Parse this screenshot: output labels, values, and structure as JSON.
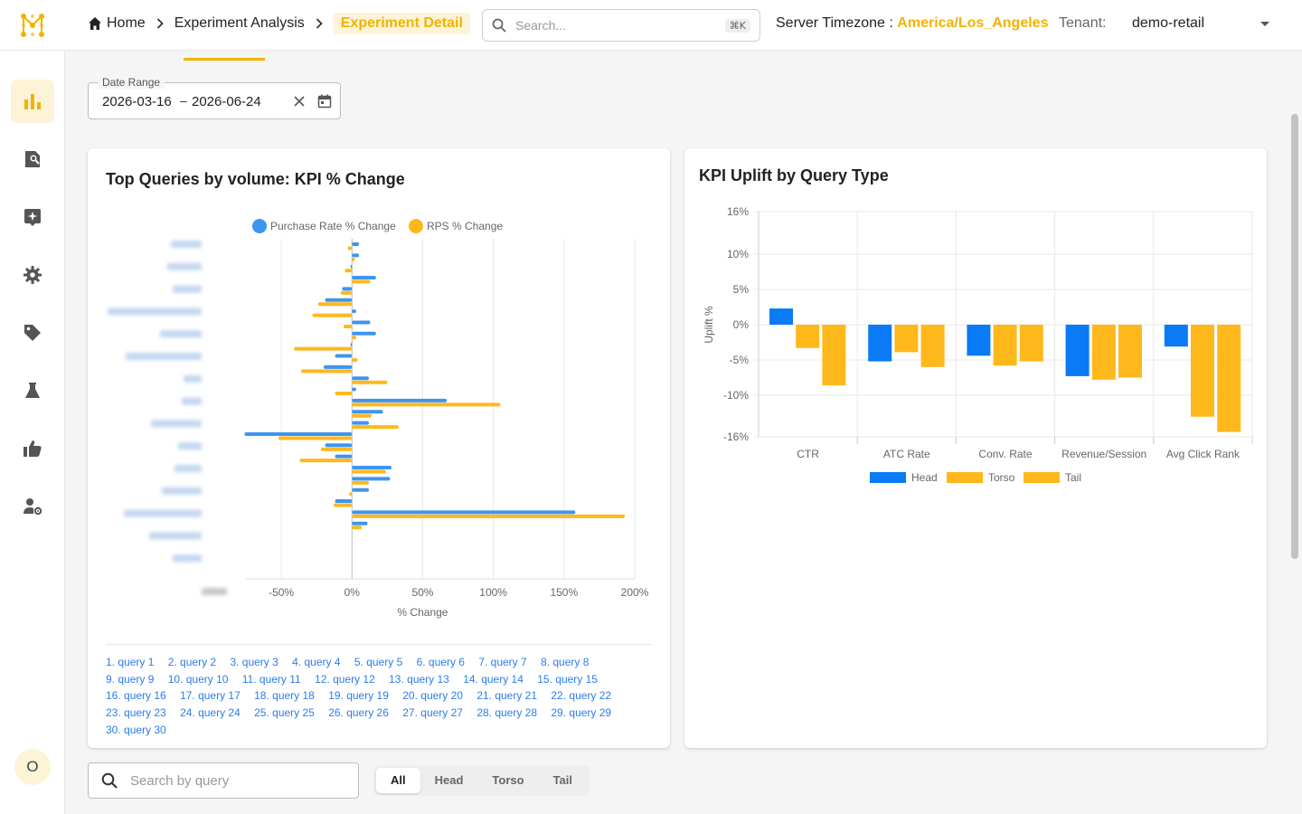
{
  "header": {
    "breadcrumbs": [
      "Home",
      "Experiment Analysis",
      "Experiment Detail"
    ],
    "search_placeholder": "Search...",
    "search_shortcut": "⌘K",
    "timezone_label": "Server Timezone :",
    "timezone_value": "America/Los_Angeles",
    "tenant_label": "Tenant:",
    "tenant_value": "demo-retail"
  },
  "sidebar": {
    "items": [
      {
        "icon": "bar-chart-icon",
        "active": true
      },
      {
        "icon": "search-document-icon",
        "active": false
      },
      {
        "icon": "sparkle-box-icon",
        "active": false
      },
      {
        "icon": "gear-icon",
        "active": false
      },
      {
        "icon": "tag-icon",
        "active": false
      },
      {
        "icon": "flask-icon",
        "active": false
      },
      {
        "icon": "thumbs-up-icon",
        "active": false
      },
      {
        "icon": "user-settings-icon",
        "active": false
      }
    ],
    "avatar_initial": "O"
  },
  "date_range": {
    "label": "Date Range",
    "start": "2026-03-16",
    "separator": "–",
    "end": "2026-06-24"
  },
  "left_card": {
    "title": "Top Queries by volume: KPI % Change",
    "query_links": [
      "1. query 1",
      "2. query 2",
      "3. query 3",
      "4. query 4",
      "5. query 5",
      "6. query 6",
      "7. query 7",
      "8. query 8",
      "9. query 9",
      "10. query 10",
      "11. query 11",
      "12. query 12",
      "13. query 13",
      "14. query 14",
      "15. query 15",
      "16. query 16",
      "17. query 17",
      "18. query 18",
      "19. query 19",
      "20. query 20",
      "21. query 21",
      "22. query 22",
      "23. query 23",
      "24. query 24",
      "25. query 25",
      "26. query 26",
      "27. query 27",
      "28. query 28",
      "29. query 29",
      "30. query 30"
    ]
  },
  "right_card": {
    "title": "KPI Uplift by Query Type"
  },
  "bottom": {
    "search_placeholder": "Search by query",
    "segments": [
      "All",
      "Head",
      "Torso",
      "Tail"
    ],
    "active_segment": "All"
  },
  "colors": {
    "accent": "#f0b400",
    "blue": "#3d95f0",
    "amber": "#ffb81c",
    "head_blue": "#0a7af5"
  },
  "chart_data": [
    {
      "type": "bar",
      "orientation": "horizontal",
      "title": "Top Queries by volume: KPI % Change",
      "xlabel": "% Change",
      "xlim": [
        -75,
        200
      ],
      "xticks": [
        "-50%",
        "0%",
        "50%",
        "100%",
        "150%",
        "200%"
      ],
      "legend": "top",
      "categories_count": 30,
      "series": [
        {
          "name": "Purchase Rate % Change",
          "color": "#3d95f0",
          "values": [
            5,
            5,
            -1,
            17,
            -7,
            -19,
            3,
            13,
            17,
            -1,
            -12,
            -20,
            12,
            3,
            67,
            22,
            12,
            -76,
            -19,
            -12,
            28,
            27,
            12,
            -12,
            158,
            11,
            0,
            0,
            0,
            0
          ]
        },
        {
          "name": "RPS % Change",
          "color": "#ffb81c",
          "values": [
            -3,
            2,
            -5,
            13,
            -8,
            -24,
            -28,
            -6,
            3,
            -41,
            4,
            -36,
            25,
            -12,
            105,
            14,
            33,
            -52,
            -22,
            -37,
            24,
            12,
            -2,
            -13,
            193,
            7,
            0,
            0,
            0,
            0
          ]
        }
      ]
    },
    {
      "type": "bar",
      "title": "KPI Uplift by Query Type",
      "ylabel": "Uplift %",
      "categories": [
        "CTR",
        "ATC Rate",
        "Conv. Rate",
        "Revenue/Session",
        "Avg Click Rank"
      ],
      "yticks": [
        "16%",
        "10%",
        "5%",
        "0%",
        "-5%",
        "-10%",
        "-16%"
      ],
      "legend": "bottom",
      "series": [
        {
          "name": "Head",
          "color": "#0a7af5",
          "values": [
            2.3,
            -5.2,
            -4.4,
            -7.3,
            -3.1
          ]
        },
        {
          "name": "Torso",
          "color": "#ffb81c",
          "values": [
            -3.3,
            -3.9,
            -5.8,
            -7.8,
            -13.1
          ]
        },
        {
          "name": "Tail",
          "color": "#ffb81c",
          "values": [
            -8.6,
            -6.0,
            -5.2,
            -7.5,
            -15.3
          ]
        }
      ]
    }
  ]
}
